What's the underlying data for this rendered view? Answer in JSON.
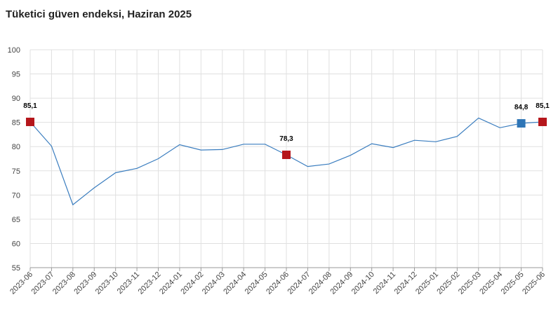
{
  "title": "Tüketici güven endeksi, Haziran 2025",
  "chart_data": {
    "type": "line",
    "title": "Tüketici güven endeksi, Haziran 2025",
    "xlabel": "",
    "ylabel": "",
    "ylim": [
      55,
      100
    ],
    "yticks": [
      55,
      60,
      65,
      70,
      75,
      80,
      85,
      90,
      95,
      100
    ],
    "grid": true,
    "x": [
      "2023-06",
      "2023-07",
      "2023-08",
      "2023-09",
      "2023-10",
      "2023-11",
      "2023-12",
      "2024-01",
      "2024-02",
      "2024-03",
      "2024-04",
      "2024-05",
      "2024-06",
      "2024-07",
      "2024-08",
      "2024-09",
      "2024-10",
      "2024-11",
      "2024-12",
      "2025-01",
      "2025-02",
      "2025-03",
      "2025-04",
      "2025-05",
      "2025-06"
    ],
    "series": [
      {
        "values": [
          85.1,
          80.1,
          68.0,
          71.5,
          74.6,
          75.5,
          77.5,
          80.4,
          79.3,
          79.4,
          80.5,
          80.5,
          78.3,
          75.9,
          76.4,
          78.2,
          80.6,
          79.8,
          81.3,
          81.0,
          82.1,
          85.9,
          83.9,
          84.8,
          85.1
        ],
        "color": "#3a7dbf"
      }
    ],
    "highlights": [
      {
        "index": 0,
        "label": "85,1",
        "color": "#b5161b"
      },
      {
        "index": 12,
        "label": "78,3",
        "color": "#b5161b"
      },
      {
        "index": 23,
        "label": "84,8",
        "color": "#2e75b6"
      },
      {
        "index": 24,
        "label": "85,1",
        "color": "#b5161b"
      }
    ]
  }
}
